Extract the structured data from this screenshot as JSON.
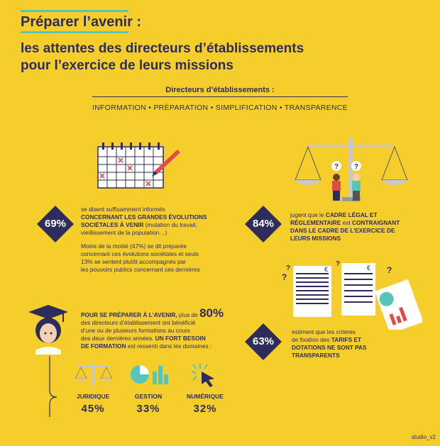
{
  "header": {
    "title_line1": "Préparer l’avenir :",
    "title_line2": "les attentes des directeurs d’établissements",
    "title_line3": "pour l’exercice de leurs missions"
  },
  "intro": {
    "label": "Directeurs d’établissements :",
    "keywords": "INFORMATION • PRÉPARATION • SIMPLIFICATION • TRANSPARENCE"
  },
  "stat1": {
    "pct": "69%",
    "t1": "se disent suffisamment informés",
    "t2": "CONCERNANT LES GRANDES ÉVOLUTIONS",
    "t3": "SOCIÉTALES À VENIR",
    "t3b": " (mutation du travail,",
    "t4": "vieillissement de la population…)",
    "p1": "Moins de la moitié (47%) se dit préparée",
    "p2": "concernant ces évolutions sociétales et seuls",
    "p3": "13% se sentent plutôt accompagnés par",
    "p4": "les pouvoirs publics concernant ces dernières"
  },
  "stat2": {
    "pct": "84%",
    "t1": "jugent que le ",
    "t1b": "CADRE LÉGAL ET",
    "t2": "RÉGLEMENTAIRE",
    "t2b": " est ",
    "t2c": "CONTRAIGNANT",
    "t3": "DANS LE CADRE DE L’EXERCICE DE",
    "t4": "LEURS MISSIONS"
  },
  "stat3": {
    "pct": "63%",
    "t1": "estiment que les critères",
    "t2": "de fixation des ",
    "t2b": "TARIFS ET",
    "t3": "DOTATIONS NE SONT PAS",
    "t4": "TRANSPARENTS"
  },
  "training": {
    "l1a": "POUR SE PRÉPARER À L’AVENIR,",
    "l1b": " plus de ",
    "big": "80%",
    "l2": "des directeurs d’établissement ont bénéficié",
    "l3": "d’une ou de plusieurs formations au cours",
    "l4": "des deux dernières années. ",
    "l4b": "UN FORT BESOIN",
    "l5": "DE FORMATION",
    "l5b": " est ressenti dans les domaines :"
  },
  "domains": [
    {
      "label": "JURIDIQUE",
      "value": "45%"
    },
    {
      "label": "GESTION",
      "value": "33%"
    },
    {
      "label": "NUMÉRIQUE",
      "value": "32%"
    }
  ],
  "marks": {
    "question": "?",
    "euro": "€"
  },
  "footer": {
    "credit": "studio_v2"
  },
  "colors": {
    "background": "#f6ce2c",
    "navy": "#2d2c5c",
    "teal": "#55c6b9",
    "red": "#e04a4a",
    "diamond_light": "#c9b43b"
  }
}
